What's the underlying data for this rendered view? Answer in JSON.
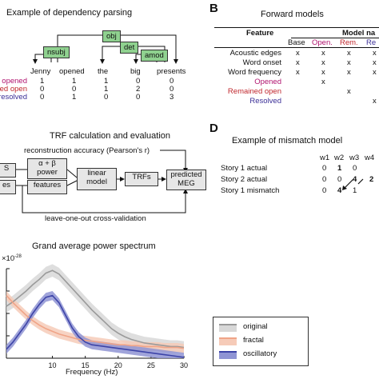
{
  "panel_a": {
    "title": "Example of dependency parsing",
    "words": [
      "Jenny",
      "opened",
      "the",
      "big",
      "presents"
    ],
    "arc_labels": [
      "obj",
      "nsubj",
      "det",
      "amod"
    ],
    "rows": [
      {
        "label": "opened",
        "values": [
          "1",
          "1",
          "1",
          "0",
          "0"
        ]
      },
      {
        "label": "mained open",
        "values": [
          "0",
          "0",
          "1",
          "2",
          "0"
        ]
      },
      {
        "label": "resolved",
        "values": [
          "0",
          "1",
          "0",
          "0",
          "3"
        ]
      }
    ],
    "colors": {
      "opened": "#b0136f",
      "remained": "#c0272d",
      "resolved": "#3b2f97",
      "arc_fill": "#8fd18f"
    }
  },
  "panel_b": {
    "letter": "B",
    "title": "Forward models",
    "header_feature": "Feature",
    "header_group": "Model na",
    "columns": [
      "Base",
      "Open.",
      "Rem.",
      "Re"
    ],
    "rows": [
      {
        "label": "Acoustic edges",
        "marks": [
          "x",
          "x",
          "x",
          "x"
        ]
      },
      {
        "label": "Word onset",
        "marks": [
          "x",
          "x",
          "x",
          "x"
        ]
      },
      {
        "label": "Word frequency",
        "marks": [
          "x",
          "x",
          "x",
          "x"
        ]
      },
      {
        "label": "Opened",
        "marks": [
          "",
          "x",
          "",
          ""
        ]
      },
      {
        "label": "Remained open",
        "marks": [
          "",
          "",
          "x",
          ""
        ]
      },
      {
        "label": "Resolved",
        "marks": [
          "",
          "",
          "",
          "x"
        ]
      }
    ]
  },
  "panel_c": {
    "title": "TRF calculation and evaluation",
    "recon_label": "reconstruction accuracy (Pearson's r)",
    "boxes": {
      "s": "S",
      "es": "es",
      "power": "α + β\npower",
      "features": "features",
      "linear": "linear\nmodel",
      "trfs": "TRFs",
      "predicted": "predicted\nMEG"
    },
    "cv_label": "leave-one-out cross-validation"
  },
  "panel_d": {
    "letter": "D",
    "title": "Example of mismatch model",
    "columns": [
      "w1",
      "w2",
      "w3",
      "w4"
    ],
    "rows": [
      {
        "label": "Story 1  actual",
        "values": [
          "0",
          "1",
          "0",
          ""
        ]
      },
      {
        "label": "Story 2  actual",
        "values": [
          "0",
          "0",
          "4",
          "2"
        ]
      },
      {
        "label": "Story 1  mismatch",
        "values": [
          "0",
          "4",
          "1",
          ""
        ]
      }
    ]
  },
  "chart_data": {
    "type": "line",
    "title": "Grand average power spectrum",
    "xlabel": "Frequency (Hz)",
    "ylabel": "",
    "exponent_label": "×10",
    "exponent_sup": "-28",
    "xlim": [
      3,
      30
    ],
    "x_ticks": [
      "10",
      "15",
      "20",
      "25",
      "30"
    ],
    "x": [
      3,
      4,
      5,
      6,
      7,
      8,
      9,
      10,
      11,
      12,
      13,
      14,
      15,
      16,
      17,
      18,
      19,
      20,
      21,
      22,
      23,
      24,
      25,
      26,
      27,
      28,
      29,
      30
    ],
    "series": [
      {
        "name": "original",
        "color": "#9a9a9a",
        "values": [
          0.58,
          0.63,
          0.69,
          0.75,
          0.82,
          0.88,
          0.95,
          0.98,
          0.94,
          0.86,
          0.78,
          0.7,
          0.62,
          0.54,
          0.47,
          0.4,
          0.33,
          0.28,
          0.24,
          0.21,
          0.19,
          0.17,
          0.16,
          0.15,
          0.14,
          0.13,
          0.13,
          0.12
        ]
      },
      {
        "name": "fractal",
        "color": "#f0a487",
        "values": [
          0.7,
          0.62,
          0.55,
          0.48,
          0.42,
          0.37,
          0.33,
          0.3,
          0.27,
          0.25,
          0.23,
          0.21,
          0.2,
          0.19,
          0.18,
          0.17,
          0.16,
          0.15,
          0.15,
          0.14,
          0.14,
          0.13,
          0.13,
          0.13,
          0.12,
          0.12,
          0.12,
          0.11
        ]
      },
      {
        "name": "oscillatory",
        "color": "#3d44a8",
        "values": [
          0.1,
          0.18,
          0.28,
          0.38,
          0.5,
          0.6,
          0.68,
          0.7,
          0.62,
          0.48,
          0.34,
          0.24,
          0.18,
          0.15,
          0.14,
          0.13,
          0.12,
          0.11,
          0.1,
          0.09,
          0.08,
          0.07,
          0.06,
          0.05,
          0.04,
          0.03,
          0.02,
          0.01
        ]
      }
    ]
  }
}
